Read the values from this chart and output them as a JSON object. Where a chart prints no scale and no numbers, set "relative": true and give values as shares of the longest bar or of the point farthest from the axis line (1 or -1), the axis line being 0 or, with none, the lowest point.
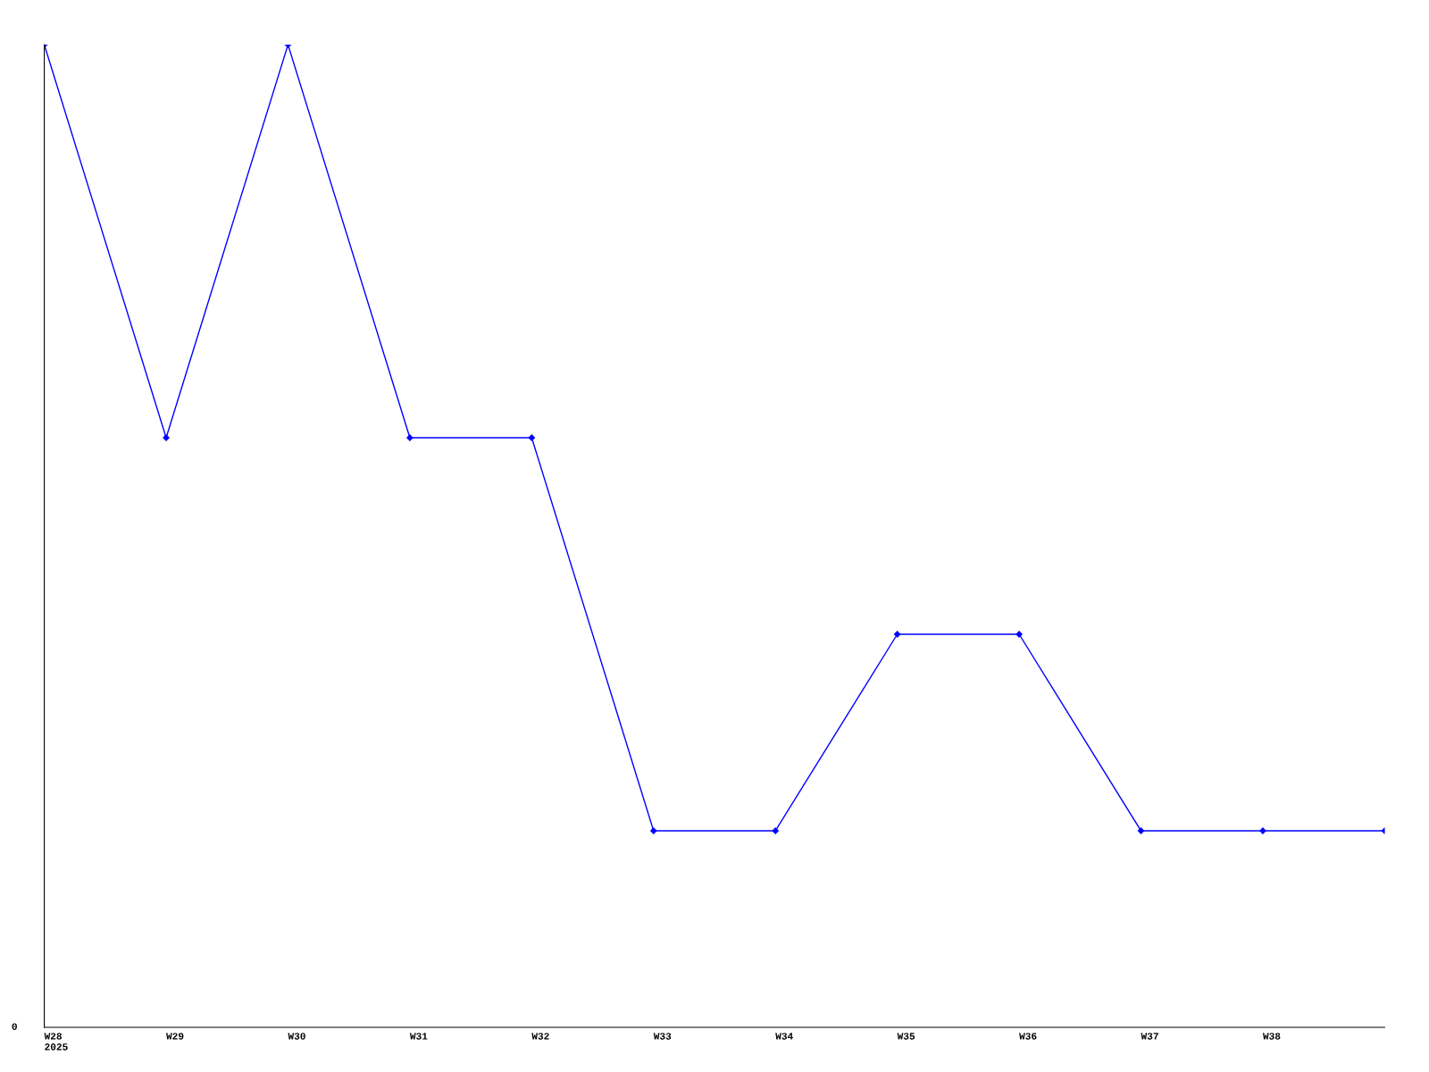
{
  "chart_data": {
    "type": "line",
    "relative": true,
    "categories": [
      "W28\n2025",
      "W29",
      "W30",
      "W31",
      "W32",
      "W33",
      "W34",
      "W35",
      "W36",
      "W37",
      "W38",
      null
    ],
    "series": [
      {
        "color": "#0000ff",
        "values": [
          1,
          0.6,
          1,
          0.6,
          0.6,
          0.2,
          0.2,
          0.4,
          0.4,
          0.2,
          0.2,
          0.2
        ]
      }
    ],
    "marker": "diamond",
    "line_style": "solid",
    "grid": false,
    "legend": false,
    "annotations": [
      "0"
    ]
  }
}
